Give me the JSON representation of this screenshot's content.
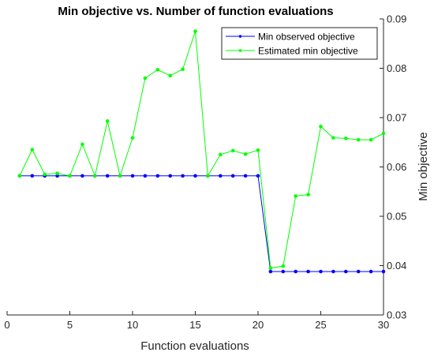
{
  "chart_data": {
    "type": "line",
    "title": "Min objective vs. Number of function evaluations",
    "xlabel": "Function evaluations",
    "ylabel": "Min objective",
    "xlim": [
      0,
      30
    ],
    "ylim": [
      0.03,
      0.09
    ],
    "xticks": [
      "0",
      "5",
      "10",
      "15",
      "20",
      "25",
      "30"
    ],
    "yticks": [
      "0.03",
      "0.04",
      "0.05",
      "0.06",
      "0.07",
      "0.08",
      "0.09"
    ],
    "y_axis_side": "right",
    "grid": false,
    "legend_position": "top-right",
    "x": [
      1,
      2,
      3,
      4,
      5,
      6,
      7,
      8,
      9,
      10,
      11,
      12,
      13,
      14,
      15,
      16,
      17,
      18,
      19,
      20,
      21,
      22,
      23,
      24,
      25,
      26,
      27,
      28,
      29,
      30
    ],
    "series": [
      {
        "name": "Min observed objective",
        "color": "#0000ff",
        "values": [
          0.0582,
          0.0582,
          0.0582,
          0.0582,
          0.0582,
          0.0582,
          0.0582,
          0.0582,
          0.0582,
          0.0582,
          0.0582,
          0.0582,
          0.0582,
          0.0582,
          0.0582,
          0.0582,
          0.0582,
          0.0582,
          0.0582,
          0.0582,
          0.0388,
          0.0388,
          0.0388,
          0.0388,
          0.0388,
          0.0388,
          0.0388,
          0.0388,
          0.0388,
          0.0388
        ]
      },
      {
        "name": "Estimated min objective",
        "color": "#00ff00",
        "values": [
          0.0582,
          0.0635,
          0.0585,
          0.0587,
          0.0582,
          0.0646,
          0.0582,
          0.0693,
          0.0582,
          0.0659,
          0.078,
          0.0797,
          0.0785,
          0.0798,
          0.0875,
          0.0582,
          0.0625,
          0.0633,
          0.0626,
          0.0634,
          0.0395,
          0.0399,
          0.0541,
          0.0544,
          0.0682,
          0.0659,
          0.0658,
          0.0655,
          0.0655,
          0.0668
        ]
      }
    ]
  }
}
